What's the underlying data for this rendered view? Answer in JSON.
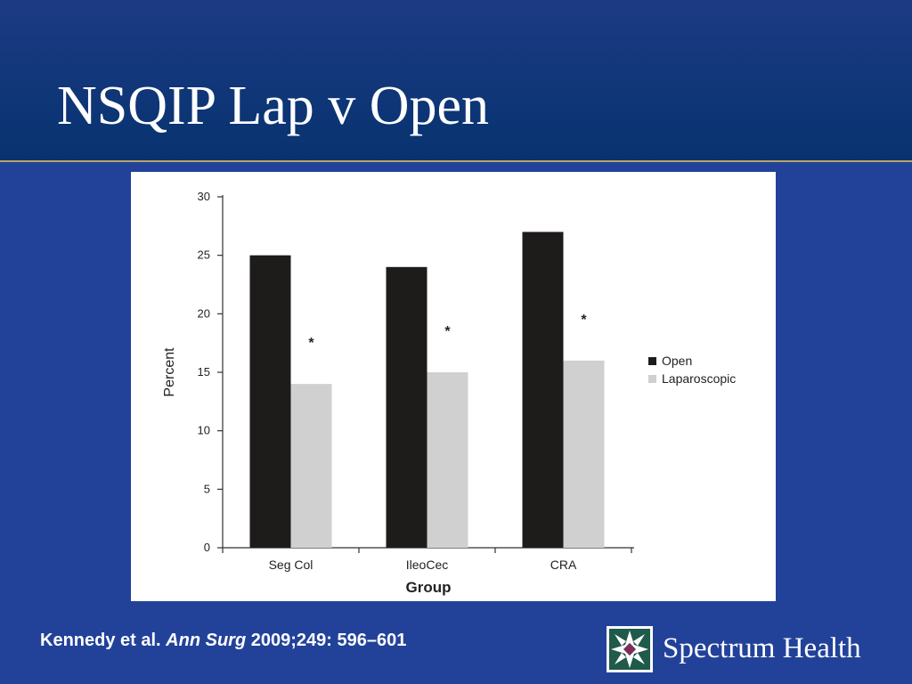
{
  "slide": {
    "title": "NSQIP Lap v Open"
  },
  "citation": {
    "authors": "Kennedy et al.",
    "journal": "Ann Surg",
    "details": "2009;249: 596–601"
  },
  "brand": {
    "name": "Spectrum Health",
    "logo_icon": "spectrum-health-logo-icon"
  },
  "chart_data": {
    "type": "bar",
    "title": "",
    "xlabel": "Group",
    "ylabel": "Percent",
    "ylim": [
      0,
      30
    ],
    "yticks": [
      0,
      5,
      10,
      15,
      20,
      25,
      30
    ],
    "categories": [
      "Seg Col",
      "IleoCec",
      "CRA"
    ],
    "series": [
      {
        "name": "Open",
        "values": [
          25,
          24,
          27
        ],
        "color": "#1e1b1b"
      },
      {
        "name": "Laparoscopic",
        "values": [
          14,
          15,
          16
        ],
        "color": "#d0d0d0"
      }
    ],
    "annotations": [
      "*",
      "*",
      "*"
    ],
    "legend": "right",
    "grid": false
  }
}
